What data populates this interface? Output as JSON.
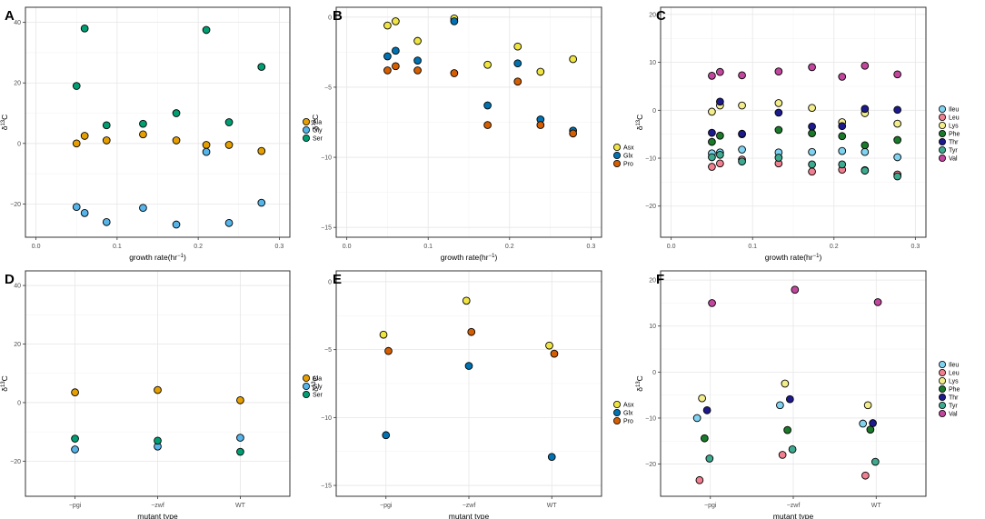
{
  "colors": {
    "Ala": "#E69F00",
    "Gly": "#56B4E9",
    "Ser": "#009E73",
    "Asx": "#F0E442",
    "Glx": "#0072B2",
    "Pro": "#D55E00",
    "Ileu": "#7FD3F0",
    "Leu": "#F07F8F",
    "Lys": "#F2EC8A",
    "Phe": "#1A7A2A",
    "Thr": "#1C1A8C",
    "Tyr": "#3DAA90",
    "Val": "#C2469E",
    "grid": "#e6e6e6",
    "frame": "#333333"
  },
  "chart_data": [
    {
      "id": "A",
      "type": "scatter",
      "panel_label": "A",
      "xlabel": "growth rate",
      "xlabel_unit": "hr",
      "xlabel_sup": "−1",
      "ylabel": "δ",
      "ylabel_sup": "13",
      "ylabel_tail": "C",
      "xlim": [
        -0.013,
        0.313
      ],
      "ylim": [
        -31,
        45
      ],
      "xticks": [
        0,
        0.1,
        0.2,
        0.3
      ],
      "xtick_labels": [
        "0.0",
        "0.1",
        "0.2",
        "0.3"
      ],
      "yticks": [
        -20,
        0,
        20,
        40
      ],
      "ytick_labels": [
        "−20",
        "0",
        "20",
        "40"
      ],
      "series": [
        {
          "name": "Ala",
          "x": [
            0.05,
            0.06,
            0.087,
            0.132,
            0.173,
            0.21,
            0.238,
            0.278
          ],
          "y": [
            0,
            2.5,
            1,
            3,
            1,
            -0.5,
            -0.5,
            -2.5
          ]
        },
        {
          "name": "Gly",
          "x": [
            0.05,
            0.06,
            0.087,
            0.132,
            0.173,
            0.21,
            0.238,
            0.278
          ],
          "y": [
            -21,
            -23,
            -26,
            -21.3,
            -26.8,
            -2.8,
            -26.3,
            -19.6
          ]
        },
        {
          "name": "Ser",
          "x": [
            0.05,
            0.06,
            0.087,
            0.132,
            0.173,
            0.21,
            0.238,
            0.278
          ],
          "y": [
            19,
            38,
            6,
            6.5,
            10,
            37.5,
            7,
            25.3
          ]
        }
      ]
    },
    {
      "id": "B",
      "type": "scatter",
      "panel_label": "B",
      "xlabel": "growth rate",
      "xlabel_unit": "hr",
      "xlabel_sup": "−1",
      "ylabel": "δ",
      "ylabel_sup": "13",
      "ylabel_tail": "C",
      "xlim": [
        -0.013,
        0.313
      ],
      "ylim": [
        -15.7,
        0.7
      ],
      "xticks": [
        0,
        0.1,
        0.2,
        0.3
      ],
      "xtick_labels": [
        "0.0",
        "0.1",
        "0.2",
        "0.3"
      ],
      "yticks": [
        -15,
        -10,
        -5,
        0
      ],
      "ytick_labels": [
        "−15",
        "−10",
        "−5",
        "0"
      ],
      "series": [
        {
          "name": "Asx",
          "x": [
            0.05,
            0.06,
            0.087,
            0.132,
            0.173,
            0.21,
            0.238,
            0.278
          ],
          "y": [
            -0.6,
            -0.3,
            -1.7,
            -0.1,
            -3.4,
            -2.1,
            -3.9,
            -3
          ]
        },
        {
          "name": "Glx",
          "x": [
            0.05,
            0.06,
            0.087,
            0.132,
            0.173,
            0.21,
            0.238,
            0.278
          ],
          "y": [
            -2.8,
            -2.4,
            -3.1,
            -0.3,
            -6.3,
            -3.3,
            -7.3,
            -8.1
          ]
        },
        {
          "name": "Pro",
          "x": [
            0.05,
            0.06,
            0.087,
            0.132,
            0.173,
            0.21,
            0.238,
            0.278
          ],
          "y": [
            -3.8,
            -3.5,
            -3.8,
            -4,
            -7.7,
            -4.6,
            -7.7,
            -8.3
          ]
        }
      ]
    },
    {
      "id": "C",
      "type": "scatter",
      "panel_label": "C",
      "xlabel": "growth rate",
      "xlabel_unit": "hr",
      "xlabel_sup": "−1",
      "ylabel": "δ",
      "ylabel_sup": "13",
      "ylabel_tail": "C",
      "xlim": [
        -0.013,
        0.313
      ],
      "ylim": [
        -26.5,
        21.5
      ],
      "xticks": [
        0,
        0.1,
        0.2,
        0.3
      ],
      "xtick_labels": [
        "0.0",
        "0.1",
        "0.2",
        "0.3"
      ],
      "yticks": [
        -20,
        -10,
        0,
        10,
        20
      ],
      "ytick_labels": [
        "−20",
        "−10",
        "0",
        "10",
        "20"
      ],
      "series": [
        {
          "name": "Ileu",
          "x": [
            0.05,
            0.06,
            0.087,
            0.132,
            0.173,
            0.21,
            0.238,
            0.278
          ],
          "y": [
            -9,
            -8.8,
            -8.2,
            -8.8,
            -8.7,
            -8.5,
            -8.7,
            -9.8
          ]
        },
        {
          "name": "Leu",
          "x": [
            0.05,
            0.06,
            0.087,
            0.132,
            0.173,
            0.21,
            0.238,
            0.278
          ],
          "y": [
            -11.8,
            -11.1,
            -10.3,
            -11.1,
            -12.8,
            -12.4,
            -12.5,
            -13.4
          ]
        },
        {
          "name": "Lys",
          "x": [
            0.05,
            0.06,
            0.087,
            0.132,
            0.173,
            0.21,
            0.238,
            0.278
          ],
          "y": [
            -0.3,
            1,
            1,
            1.5,
            0.5,
            -2.5,
            -0.6,
            -2.8
          ]
        },
        {
          "name": "Phe",
          "x": [
            0.05,
            0.06,
            0.087,
            0.132,
            0.173,
            0.21,
            0.238,
            0.278
          ],
          "y": [
            -6.6,
            -5.3,
            -5,
            -4.1,
            -4.8,
            -5.4,
            -7.3,
            -6.2
          ]
        },
        {
          "name": "Thr",
          "x": [
            0.05,
            0.06,
            0.087,
            0.132,
            0.173,
            0.21,
            0.238,
            0.278
          ],
          "y": [
            -4.7,
            1.8,
            -4.9,
            -0.5,
            -3.4,
            -3.3,
            0.3,
            0.1
          ]
        },
        {
          "name": "Tyr",
          "x": [
            0.05,
            0.06,
            0.087,
            0.132,
            0.173,
            0.21,
            0.238,
            0.278
          ],
          "y": [
            -9.8,
            -9.3,
            -10.7,
            -9.9,
            -11.3,
            -11.3,
            -12.6,
            -13.8
          ]
        },
        {
          "name": "Val",
          "x": [
            0.05,
            0.06,
            0.087,
            0.132,
            0.173,
            0.21,
            0.238,
            0.278
          ],
          "y": [
            7.2,
            8,
            7.3,
            8.1,
            9,
            7,
            9.3,
            7.5
          ]
        }
      ]
    },
    {
      "id": "D",
      "type": "scatter",
      "panel_label": "D",
      "xlabel": "mutant type",
      "ylabel": "δ",
      "ylabel_sup": "13",
      "ylabel_tail": "C",
      "categories": [
        "−pgi",
        "−zwf",
        "WT"
      ],
      "ylim": [
        -32,
        45
      ],
      "yticks": [
        -20,
        0,
        20,
        40
      ],
      "ytick_labels": [
        "−20",
        "0",
        "20",
        "40"
      ],
      "series": [
        {
          "name": "Ala",
          "x": [
            1,
            2,
            3
          ],
          "y": [
            3.5,
            4.3,
            0.8
          ]
        },
        {
          "name": "Gly",
          "x": [
            1,
            2,
            3
          ],
          "y": [
            -16,
            -15,
            -12
          ]
        },
        {
          "name": "Ser",
          "x": [
            1,
            2,
            3
          ],
          "y": [
            -12.3,
            -13,
            -16.8
          ]
        }
      ]
    },
    {
      "id": "E",
      "type": "scatter",
      "panel_label": "E",
      "xlabel": "mutant type",
      "ylabel": "δ",
      "ylabel_sup": "13",
      "ylabel_tail": "C",
      "categories": [
        "−pgi",
        "−zwf",
        "WT"
      ],
      "ylim": [
        -15.8,
        0.8
      ],
      "yticks": [
        -15,
        -10,
        -5,
        0
      ],
      "ytick_labels": [
        "−15",
        "−10",
        "−5",
        "0"
      ],
      "series": [
        {
          "name": "Asx",
          "x": [
            0.97,
            1.97,
            2.97
          ],
          "y": [
            -3.9,
            -1.4,
            -4.7
          ]
        },
        {
          "name": "Glx",
          "x": [
            1,
            2,
            3
          ],
          "y": [
            -11.3,
            -6.2,
            -12.9
          ]
        },
        {
          "name": "Pro",
          "x": [
            1.03,
            2.03,
            3.03
          ],
          "y": [
            -5.1,
            -3.7,
            -5.3
          ]
        }
      ]
    },
    {
      "id": "F",
      "type": "scatter",
      "panel_label": "F",
      "xlabel": "mutant type",
      "ylabel": "δ",
      "ylabel_sup": "13",
      "ylabel_tail": "C",
      "categories": [
        "−pgi",
        "−zwf",
        "WT"
      ],
      "ylim": [
        -27,
        22
      ],
      "yticks": [
        -20,
        -10,
        0,
        10,
        20
      ],
      "ytick_labels": [
        "−20",
        "−10",
        "0",
        "10",
        "20"
      ],
      "series": [
        {
          "name": "Ileu",
          "x": [
            0.84,
            1.84,
            2.84
          ],
          "y": [
            -10,
            -7.2,
            -11.2
          ]
        },
        {
          "name": "Leu",
          "x": [
            0.87,
            1.87,
            2.87
          ],
          "y": [
            -23.5,
            -18,
            -22.5
          ]
        },
        {
          "name": "Lys",
          "x": [
            0.9,
            1.9,
            2.9
          ],
          "y": [
            -5.7,
            -2.5,
            -7.2
          ]
        },
        {
          "name": "Phe",
          "x": [
            0.93,
            1.93,
            2.93
          ],
          "y": [
            -14.4,
            -12.6,
            -12.5
          ]
        },
        {
          "name": "Thr",
          "x": [
            0.96,
            1.96,
            2.96
          ],
          "y": [
            -8.3,
            -5.9,
            -11.1
          ]
        },
        {
          "name": "Tyr",
          "x": [
            0.99,
            1.99,
            2.99
          ],
          "y": [
            -18.8,
            -16.8,
            -19.5
          ]
        },
        {
          "name": "Val",
          "x": [
            1.02,
            2.02,
            3.02
          ],
          "y": [
            15,
            17.9,
            15.2
          ]
        }
      ]
    }
  ]
}
